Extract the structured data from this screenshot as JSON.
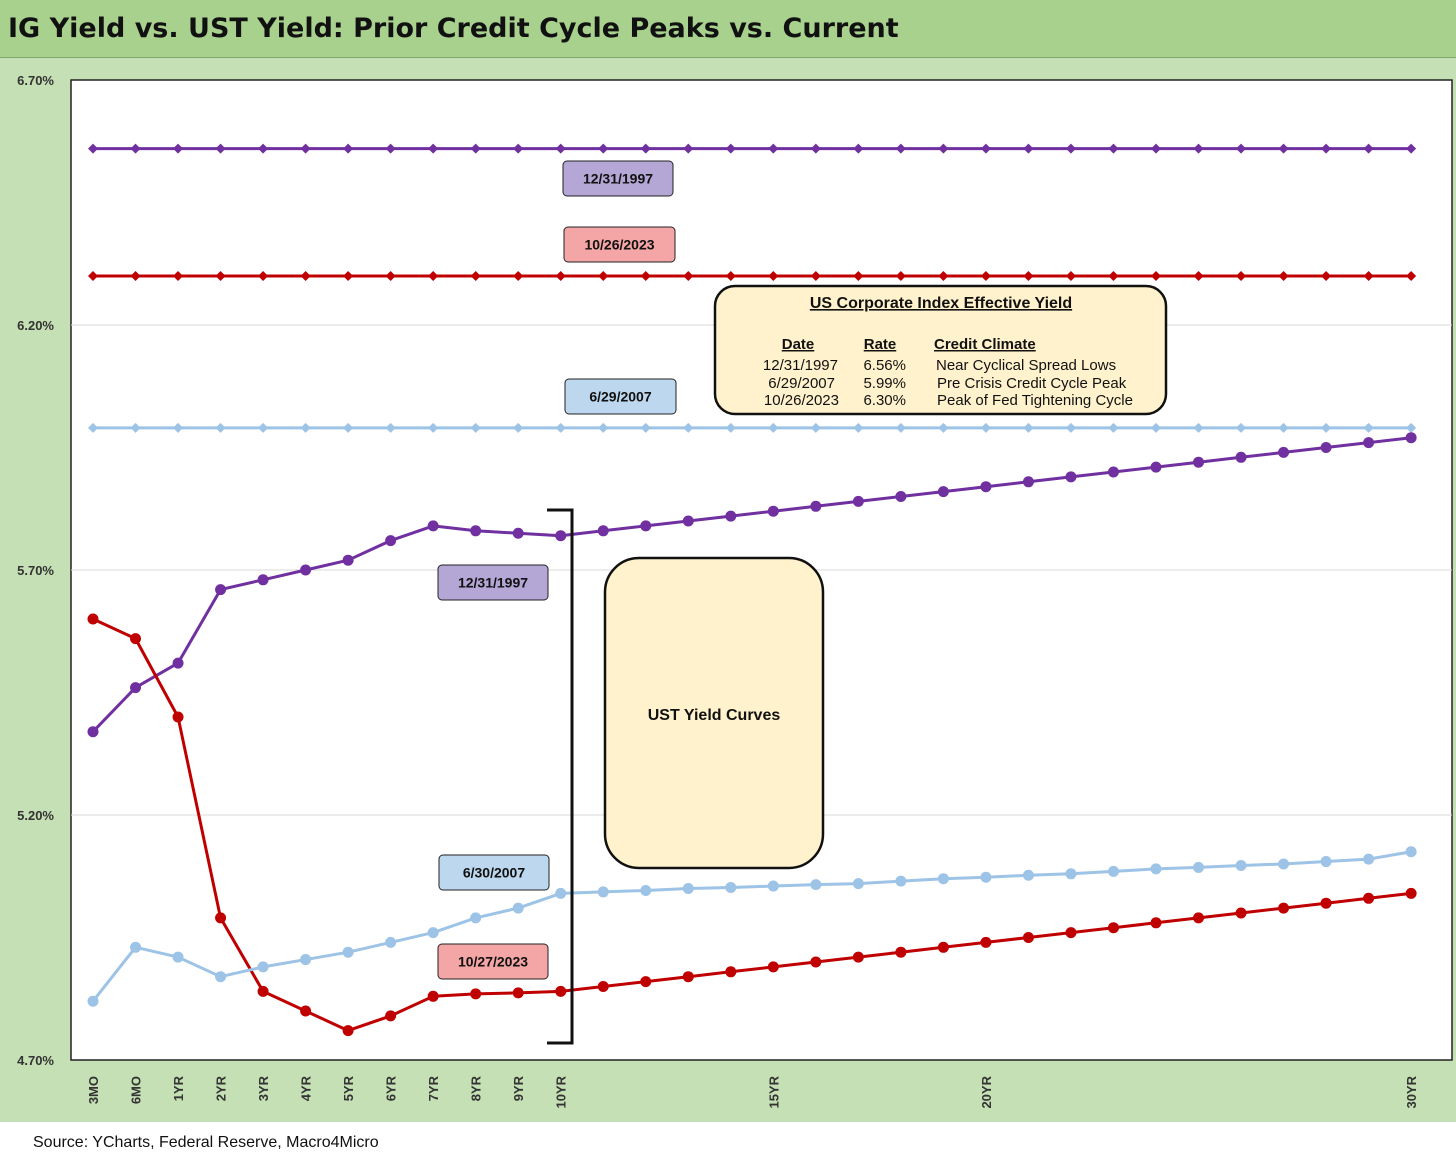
{
  "title": "IG Yield vs. UST Yield: Prior Credit Cycle Peaks vs. Current",
  "source": "Source: YCharts, Federal Reserve, Macro4Micro",
  "colors": {
    "purple": "#7030a0",
    "red": "#c00000",
    "lightblue": "#9dc3e6",
    "purple_tag": "#b4a7d6",
    "red_tag": "#f4a5a5",
    "blue_tag": "#bdd7ee",
    "box_fill": "#fff2cc"
  },
  "chart_data": {
    "type": "line",
    "title": "IG Yield vs. UST Yield: Prior Credit Cycle Peaks vs. Current",
    "xlabel": "",
    "ylabel": "",
    "ylim": [
      4.7,
      6.7
    ],
    "yticks": [
      "4.70%",
      "5.20%",
      "5.70%",
      "6.20%",
      "6.70%"
    ],
    "y_tick_values": [
      4.7,
      5.2,
      5.7,
      6.2,
      6.7
    ],
    "grid": true,
    "x_labels": [
      {
        "label": "3MO",
        "index": 0
      },
      {
        "label": "6MO",
        "index": 1
      },
      {
        "label": "1YR",
        "index": 2
      },
      {
        "label": "2YR",
        "index": 3
      },
      {
        "label": "3YR",
        "index": 4
      },
      {
        "label": "4YR",
        "index": 5
      },
      {
        "label": "5YR",
        "index": 6
      },
      {
        "label": "6YR",
        "index": 7
      },
      {
        "label": "7YR",
        "index": 8
      },
      {
        "label": "8YR",
        "index": 9
      },
      {
        "label": "9YR",
        "index": 10
      },
      {
        "label": "10YR",
        "index": 11
      },
      {
        "label": "15YR",
        "index": 16
      },
      {
        "label": "20YR",
        "index": 21
      },
      {
        "label": "30YR",
        "index": 31
      }
    ],
    "point_count": 32,
    "series": [
      {
        "name": "12/31/1997",
        "kind": "ig_flat",
        "color": "#7030a0",
        "marker": "diamond",
        "values": [
          6.56,
          6.56,
          6.56,
          6.56,
          6.56,
          6.56,
          6.56,
          6.56,
          6.56,
          6.56,
          6.56,
          6.56,
          6.56,
          6.56,
          6.56,
          6.56,
          6.56,
          6.56,
          6.56,
          6.56,
          6.56,
          6.56,
          6.56,
          6.56,
          6.56,
          6.56,
          6.56,
          6.56,
          6.56,
          6.56,
          6.56,
          6.56
        ]
      },
      {
        "name": "10/26/2023",
        "kind": "ig_flat",
        "color": "#c00000",
        "marker": "diamond",
        "values": [
          6.3,
          6.3,
          6.3,
          6.3,
          6.3,
          6.3,
          6.3,
          6.3,
          6.3,
          6.3,
          6.3,
          6.3,
          6.3,
          6.3,
          6.3,
          6.3,
          6.3,
          6.3,
          6.3,
          6.3,
          6.3,
          6.3,
          6.3,
          6.3,
          6.3,
          6.3,
          6.3,
          6.3,
          6.3,
          6.3,
          6.3,
          6.3
        ]
      },
      {
        "name": "6/29/2007",
        "kind": "ig_flat",
        "color": "#9dc3e6",
        "marker": "diamond",
        "values": [
          5.99,
          5.99,
          5.99,
          5.99,
          5.99,
          5.99,
          5.99,
          5.99,
          5.99,
          5.99,
          5.99,
          5.99,
          5.99,
          5.99,
          5.99,
          5.99,
          5.99,
          5.99,
          5.99,
          5.99,
          5.99,
          5.99,
          5.99,
          5.99,
          5.99,
          5.99,
          5.99,
          5.99,
          5.99,
          5.99,
          5.99,
          5.99
        ]
      },
      {
        "name": "12/31/1997",
        "kind": "ust_curve",
        "color": "#7030a0",
        "marker": "circle",
        "values": [
          5.37,
          5.46,
          5.51,
          5.66,
          5.68,
          5.7,
          5.72,
          5.76,
          5.79,
          5.78,
          5.775,
          5.77,
          5.78,
          5.79,
          5.8,
          5.81,
          5.82,
          5.83,
          5.84,
          5.85,
          5.86,
          5.87,
          5.88,
          5.89,
          5.9,
          5.91,
          5.92,
          5.93,
          5.94,
          5.95,
          5.96,
          5.97
        ]
      },
      {
        "name": "10/27/2023",
        "kind": "ust_curve",
        "color": "#c00000",
        "marker": "circle",
        "values": [
          5.6,
          5.56,
          5.4,
          4.99,
          4.84,
          4.8,
          4.76,
          4.79,
          4.83,
          4.835,
          4.837,
          4.84,
          4.85,
          4.86,
          4.87,
          4.88,
          4.89,
          4.9,
          4.91,
          4.92,
          4.93,
          4.94,
          4.95,
          4.96,
          4.97,
          4.98,
          4.99,
          5.0,
          5.01,
          5.02,
          5.03,
          5.04
        ]
      },
      {
        "name": "6/30/2007",
        "kind": "ust_curve",
        "color": "#9dc3e6",
        "marker": "circle",
        "values": [
          4.82,
          4.93,
          4.91,
          4.87,
          4.89,
          4.905,
          4.92,
          4.94,
          4.96,
          4.99,
          5.01,
          5.04,
          5.043,
          5.046,
          5.05,
          5.052,
          5.055,
          5.058,
          5.06,
          5.065,
          5.07,
          5.073,
          5.077,
          5.08,
          5.085,
          5.09,
          5.093,
          5.097,
          5.1,
          5.105,
          5.11,
          5.125
        ]
      }
    ],
    "annotations": {
      "tags": [
        {
          "text": "12/31/1997",
          "style": "purple"
        },
        {
          "text": "10/26/2023",
          "style": "red"
        },
        {
          "text": "6/29/2007",
          "style": "blue"
        },
        {
          "text": "12/31/1997",
          "style": "purple"
        },
        {
          "text": "6/30/2007",
          "style": "blue"
        },
        {
          "text": "10/27/2023",
          "style": "red"
        }
      ],
      "ust_box_label": "UST Yield Curves",
      "legend_table": {
        "title": "US Corporate Index Effective Yield",
        "headers": [
          "Date",
          "Rate",
          "Credit Climate"
        ],
        "rows": [
          [
            "12/31/1997",
            "6.56%",
            "Near Cyclical Spread Lows"
          ],
          [
            "6/29/2007",
            "5.99%",
            "Pre Crisis Credit Cycle Peak"
          ],
          [
            "10/26/2023",
            "6.30%",
            "Peak of Fed Tightening Cycle"
          ]
        ]
      }
    }
  }
}
